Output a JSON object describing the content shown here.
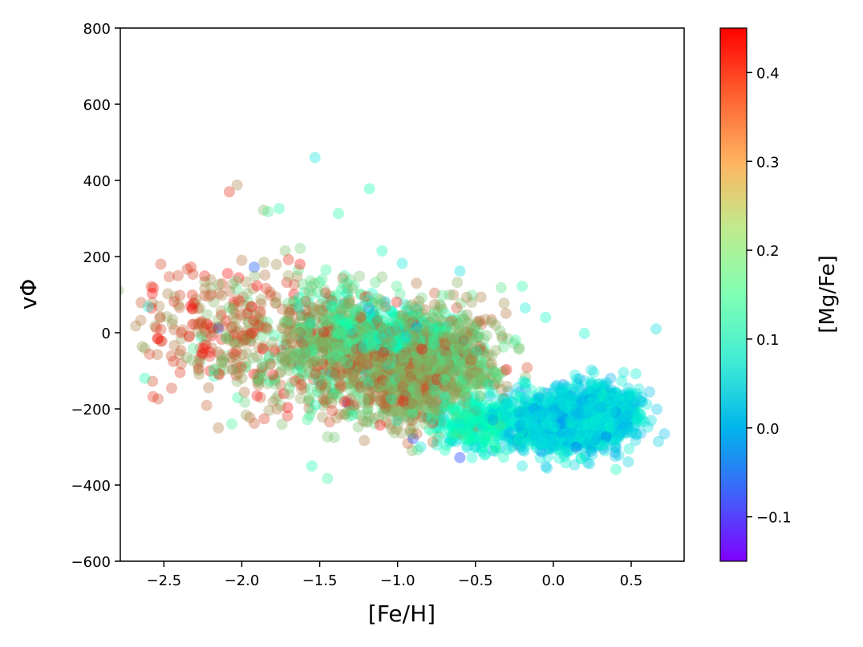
{
  "chart_data": {
    "type": "scatter",
    "title": "",
    "xlabel": "[Fe/H]",
    "ylabel": "vΦ",
    "xlim": [
      -2.78,
      0.84
    ],
    "ylim": [
      -600,
      800
    ],
    "xticks": [
      -2.5,
      -2.0,
      -1.5,
      -1.0,
      -0.5,
      0.0,
      0.5
    ],
    "xtick_labels": [
      "−2.5",
      "−2.0",
      "−1.5",
      "−1.0",
      "−0.5",
      "0.0",
      "0.5"
    ],
    "yticks": [
      -600,
      -400,
      -200,
      0,
      200,
      400,
      600,
      800
    ],
    "ytick_labels": [
      "−600",
      "−400",
      "−200",
      "0",
      "200",
      "400",
      "600",
      "800"
    ],
    "grid": false,
    "colorbar": {
      "label": "[Mg/Fe]",
      "colormap": "rainbow",
      "clim": [
        -0.15,
        0.45
      ],
      "ticks": [
        -0.1,
        0.0,
        0.1,
        0.2,
        0.3,
        0.4
      ],
      "tick_labels": [
        "−0.1",
        "0.0",
        "0.1",
        "0.2",
        "0.3",
        "0.4"
      ]
    },
    "series": [
      {
        "clusters": [
          {
            "x": -2.3,
            "y": 20,
            "sx": 0.2,
            "sy": 90,
            "c": 0.38,
            "sc": 0.05,
            "n": 130
          },
          {
            "x": -1.9,
            "y": -30,
            "sx": 0.2,
            "sy": 90,
            "c": 0.34,
            "sc": 0.06,
            "n": 200
          },
          {
            "x": -1.45,
            "y": -40,
            "sx": 0.18,
            "sy": 85,
            "c": 0.3,
            "sc": 0.07,
            "n": 450
          },
          {
            "x": -1.3,
            "y": 30,
            "sx": 0.15,
            "sy": 60,
            "c": 0.2,
            "sc": 0.07,
            "n": 150
          },
          {
            "x": -1.0,
            "y": -100,
            "sx": 0.18,
            "sy": 70,
            "c": 0.32,
            "sc": 0.05,
            "n": 650
          },
          {
            "x": -0.7,
            "y": -80,
            "sx": 0.2,
            "sy": 70,
            "c": 0.3,
            "sc": 0.05,
            "n": 650
          },
          {
            "x": -0.95,
            "y": -10,
            "sx": 0.18,
            "sy": 35,
            "c": 0.14,
            "sc": 0.05,
            "n": 220
          },
          {
            "x": -0.45,
            "y": -240,
            "sx": 0.18,
            "sy": 35,
            "c": 0.12,
            "sc": 0.04,
            "n": 300
          },
          {
            "x": 0.1,
            "y": -230,
            "sx": 0.2,
            "sy": 40,
            "c": 0.04,
            "sc": 0.04,
            "n": 1300
          },
          {
            "x": 0.35,
            "y": -200,
            "sx": 0.12,
            "sy": 30,
            "c": 0.06,
            "sc": 0.03,
            "n": 300
          }
        ],
        "points": [
          {
            "x": -2.08,
            "y": 370,
            "c": 0.42
          },
          {
            "x": -2.03,
            "y": 388,
            "c": 0.35
          },
          {
            "x": -1.86,
            "y": 322,
            "c": 0.3
          },
          {
            "x": -1.83,
            "y": 318,
            "c": 0.22
          },
          {
            "x": -1.76,
            "y": 326,
            "c": 0.18
          },
          {
            "x": -1.53,
            "y": 460,
            "c": 0.06
          },
          {
            "x": -1.38,
            "y": 313,
            "c": 0.18
          },
          {
            "x": -1.18,
            "y": 378,
            "c": 0.16
          },
          {
            "x": -1.1,
            "y": 215,
            "c": 0.15
          },
          {
            "x": -0.97,
            "y": 182,
            "c": 0.07
          },
          {
            "x": -0.6,
            "y": 162,
            "c": 0.05
          },
          {
            "x": -0.2,
            "y": 122,
            "c": 0.18
          },
          {
            "x": -0.18,
            "y": 65,
            "c": 0.08
          },
          {
            "x": -0.05,
            "y": 40,
            "c": 0.12
          },
          {
            "x": 0.2,
            "y": -2,
            "c": 0.1
          },
          {
            "x": 0.66,
            "y": 10,
            "c": 0.05
          },
          {
            "x": 0.53,
            "y": -108,
            "c": 0.08
          },
          {
            "x": -1.55,
            "y": -350,
            "c": 0.16
          },
          {
            "x": -1.45,
            "y": -383,
            "c": 0.2
          },
          {
            "x": -0.6,
            "y": -328,
            "c": -0.12
          },
          {
            "x": -0.2,
            "y": -350,
            "c": 0.07
          },
          {
            "x": -2.6,
            "y": 68,
            "c": 0.08
          },
          {
            "x": -1.92,
            "y": 172,
            "c": -0.1
          },
          {
            "x": -2.15,
            "y": 12,
            "c": -0.12
          },
          {
            "x": -1.32,
            "y": -185,
            "c": -0.12
          },
          {
            "x": -0.9,
            "y": -278,
            "c": -0.1
          },
          {
            "x": -2.57,
            "y": -168,
            "c": 0.42
          },
          {
            "x": -2.15,
            "y": -250,
            "c": 0.36
          },
          {
            "x": -1.92,
            "y": -238,
            "c": 0.38
          },
          {
            "x": -2.52,
            "y": 180,
            "c": 0.4
          },
          {
            "x": -2.35,
            "y": 167,
            "c": 0.4
          },
          {
            "x": -2.0,
            "y": 190,
            "c": 0.36
          },
          {
            "x": -1.7,
            "y": 192,
            "c": 0.42
          }
        ]
      }
    ]
  }
}
